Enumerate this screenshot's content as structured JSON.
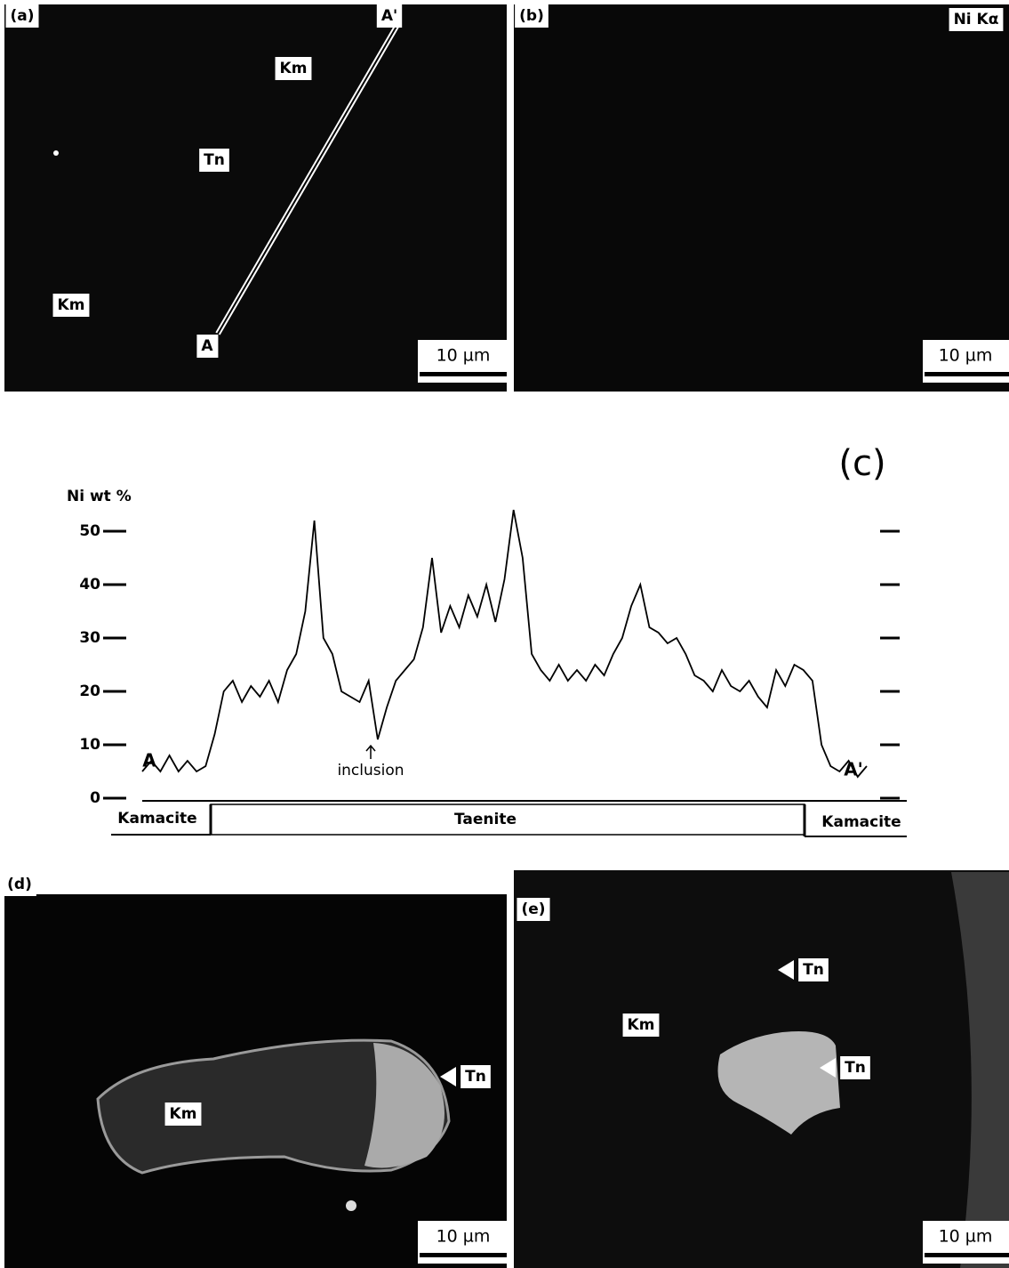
{
  "panels": [
    {
      "label": "(a)",
      "tags": [
        "Km",
        "Tn",
        "Km",
        "A",
        "A'"
      ],
      "scale_bar": "10 µm"
    },
    {
      "label": "(b)",
      "tags": [
        "Ni Kα"
      ],
      "scale_bar": "10 µm"
    },
    {
      "label": "(d)",
      "tags": [
        "Tn",
        "Km"
      ],
      "scale_bar": "10 µm"
    },
    {
      "label": "(e)",
      "tags": [
        "Tn",
        "Km",
        "Tn"
      ],
      "scale_bar": "10 µm"
    }
  ],
  "chart_data": {
    "type": "line",
    "title": "(c)",
    "ylabel": "Ni wt %",
    "ylim": [
      0,
      55
    ],
    "yticks": [
      0,
      10,
      20,
      30,
      40,
      50
    ],
    "annotations": [
      "A",
      "A'",
      "inclusion"
    ],
    "phases": [
      "Kamacite",
      "Taenite",
      "Kamacite"
    ],
    "series": [
      {
        "color": "#000000",
        "values": [
          5,
          7,
          5,
          8,
          5,
          7,
          5,
          6,
          12,
          20,
          22,
          18,
          21,
          19,
          22,
          18,
          24,
          27,
          35,
          52,
          30,
          27,
          20,
          19,
          18,
          22,
          11,
          17,
          22,
          24,
          26,
          32,
          45,
          31,
          36,
          32,
          38,
          34,
          40,
          33,
          41,
          54,
          45,
          27,
          24,
          22,
          25,
          22,
          24,
          22,
          25,
          23,
          27,
          30,
          36,
          40,
          32,
          31,
          29,
          30,
          27,
          23,
          22,
          20,
          24,
          21,
          20,
          22,
          19,
          17,
          24,
          21,
          25,
          24,
          22,
          10,
          6,
          5,
          7,
          4,
          6
        ]
      }
    ]
  }
}
